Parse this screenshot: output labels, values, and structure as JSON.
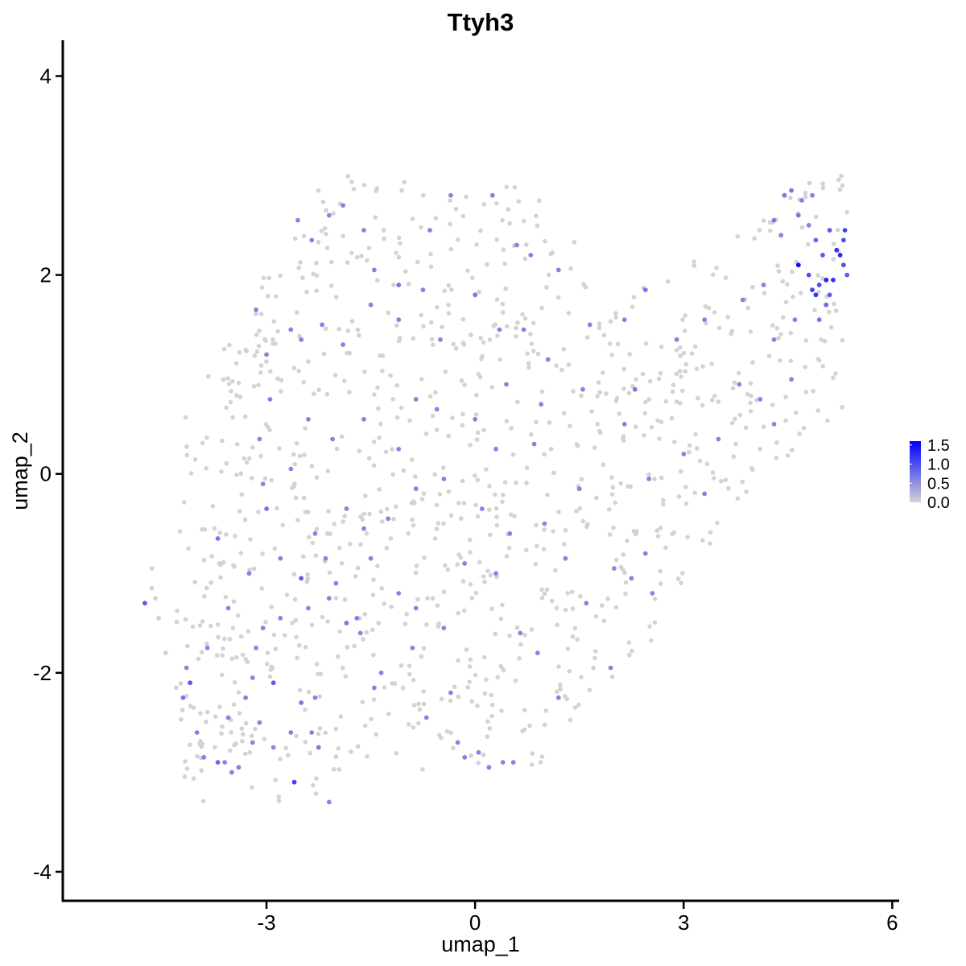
{
  "chart_data": {
    "type": "scatter",
    "title": "Ttyh3",
    "xlabel": "umap_1",
    "ylabel": "umap_2",
    "xlim": [
      -5.93,
      6.1
    ],
    "ylim": [
      -4.3,
      4.36
    ],
    "x_ticks": [
      -3,
      0,
      3,
      6
    ],
    "y_ticks": [
      -4,
      -2,
      0,
      2,
      4
    ],
    "x_tick_labels": [
      "-3",
      "0",
      "3",
      "6"
    ],
    "y_tick_labels": [
      "-4",
      "-2",
      "0",
      "2",
      "4"
    ],
    "grid": false,
    "legend": {
      "placement": "right",
      "type": "colorbar",
      "labels": [
        "1.5",
        "1.0",
        "0.5",
        "0.0"
      ],
      "range": [
        0,
        1.6
      ],
      "low_color": "#d3d3d3",
      "high_color": "#0000ff"
    },
    "colors": {
      "low": "#d3d3d3",
      "high": "#0000ff"
    },
    "points": [
      [
        -4.75,
        -1.3,
        0.9
      ],
      [
        -4.65,
        -1.15,
        0
      ],
      [
        -4.6,
        -1.25,
        0
      ],
      [
        -4.55,
        -1.45,
        0
      ],
      [
        -4.45,
        -1.8,
        0
      ],
      [
        -4.3,
        -2.15,
        0
      ],
      [
        -4.2,
        -2.25,
        0.7
      ],
      [
        -4.1,
        -2.1,
        0.9
      ],
      [
        -4.05,
        -2.35,
        0
      ],
      [
        -4.0,
        -2.6,
        0.6
      ],
      [
        -3.95,
        -2.7,
        0
      ],
      [
        -3.9,
        -2.85,
        0.6
      ],
      [
        -3.7,
        -2.9,
        0.8
      ],
      [
        -3.6,
        -2.9,
        0.6
      ],
      [
        -3.5,
        -3.0,
        0.6
      ],
      [
        -3.4,
        -2.95,
        0.6
      ],
      [
        -3.2,
        -2.7,
        0.6
      ],
      [
        -3.1,
        -2.5,
        0.6
      ],
      [
        -2.9,
        -2.75,
        0.6
      ],
      [
        -2.65,
        -2.6,
        0.6
      ],
      [
        -2.6,
        -3.1,
        1.1
      ],
      [
        -2.5,
        -2.3,
        0.7
      ],
      [
        -2.35,
        -2.6,
        0.6
      ],
      [
        -2.25,
        -2.75,
        0.7
      ],
      [
        -2.1,
        -3.3,
        0.6
      ],
      [
        -2.9,
        -2.1,
        0.9
      ],
      [
        -3.2,
        -2.05,
        0.6
      ],
      [
        -3.15,
        -1.75,
        0.6
      ],
      [
        -3.05,
        -1.55,
        0.6
      ],
      [
        -2.8,
        -1.45,
        0.6
      ],
      [
        -2.5,
        -1.05,
        0.9
      ],
      [
        -2.3,
        -2.25,
        0.6
      ],
      [
        -2.1,
        -1.25,
        0.6
      ],
      [
        -1.85,
        -1.5,
        0.7
      ],
      [
        -1.7,
        -1.45,
        0.6
      ],
      [
        -1.5,
        -0.85,
        0.6
      ],
      [
        -1.45,
        -2.15,
        0.6
      ],
      [
        -1.35,
        -2.0,
        0.6
      ],
      [
        -1.1,
        -1.2,
        0.6
      ],
      [
        -0.85,
        -1.35,
        0.6
      ],
      [
        -0.7,
        -2.45,
        0.6
      ],
      [
        -0.35,
        -2.2,
        0.6
      ],
      [
        -0.25,
        -2.7,
        0.6
      ],
      [
        -0.15,
        -2.85,
        0.6
      ],
      [
        0.05,
        -2.8,
        0.6
      ],
      [
        0.2,
        -2.95,
        0.6
      ],
      [
        0.4,
        -2.9,
        0.6
      ],
      [
        0.55,
        -2.9,
        0.6
      ],
      [
        0.9,
        -1.8,
        0.6
      ],
      [
        1.2,
        -2.25,
        0.6
      ],
      [
        1.95,
        -1.95,
        0.6
      ],
      [
        2.25,
        -1.05,
        0.6
      ],
      [
        2.55,
        -1.2,
        0.6
      ],
      [
        -4.65,
        -0.95,
        0
      ],
      [
        -3.7,
        -0.65,
        0.7
      ],
      [
        -3.0,
        -0.35,
        0.7
      ],
      [
        -3.05,
        -0.1,
        0.6
      ],
      [
        -2.65,
        0.05,
        0.6
      ],
      [
        -2.3,
        -0.6,
        0.6
      ],
      [
        -2.15,
        -0.85,
        0.6
      ],
      [
        -1.85,
        -0.35,
        0.6
      ],
      [
        -1.6,
        -0.55,
        0.6
      ],
      [
        -1.25,
        -0.45,
        0.6
      ],
      [
        -0.85,
        -0.15,
        0.6
      ],
      [
        -0.45,
        -0.05,
        0.6
      ],
      [
        -0.15,
        -0.9,
        0.6
      ],
      [
        0.1,
        -0.35,
        0.6
      ],
      [
        0.3,
        0.25,
        0.6
      ],
      [
        0.5,
        -0.6,
        0.6
      ],
      [
        0.85,
        0.3,
        0.6
      ],
      [
        1.0,
        -0.5,
        0.6
      ],
      [
        1.5,
        -0.15,
        0.6
      ],
      [
        2.15,
        0.5,
        0.6
      ],
      [
        2.5,
        -0.05,
        0.6
      ],
      [
        3.0,
        0.2,
        0.6
      ],
      [
        -3.1,
        0.35,
        0.6
      ],
      [
        -2.95,
        0.75,
        0.6
      ],
      [
        -2.4,
        0.55,
        0.6
      ],
      [
        -2.05,
        0.35,
        0.6
      ],
      [
        -1.6,
        0.55,
        0.6
      ],
      [
        -1.1,
        0.25,
        0.6
      ],
      [
        -0.85,
        0.75,
        0.6
      ],
      [
        -0.55,
        0.65,
        0.6
      ],
      [
        0.0,
        0.55,
        0.6
      ],
      [
        0.45,
        0.9,
        0.6
      ],
      [
        0.95,
        0.7,
        0.6
      ],
      [
        1.55,
        0.85,
        0.6
      ],
      [
        2.3,
        0.85,
        0.7
      ],
      [
        -3.15,
        1.65,
        0.6
      ],
      [
        -3.0,
        1.2,
        0.6
      ],
      [
        -2.65,
        1.45,
        0.6
      ],
      [
        -2.5,
        1.35,
        0.6
      ],
      [
        -2.2,
        1.5,
        0.6
      ],
      [
        -1.9,
        1.3,
        0.6
      ],
      [
        -1.5,
        1.7,
        0.6
      ],
      [
        -1.1,
        1.55,
        0.6
      ],
      [
        -0.75,
        1.85,
        0.6
      ],
      [
        -0.5,
        1.35,
        0.6
      ],
      [
        0.0,
        1.8,
        0.7
      ],
      [
        0.35,
        1.45,
        0.6
      ],
      [
        0.7,
        1.45,
        0.6
      ],
      [
        1.05,
        1.15,
        0.6
      ],
      [
        1.65,
        1.5,
        0.6
      ],
      [
        2.15,
        1.55,
        0.6
      ],
      [
        2.45,
        1.85,
        0.7
      ],
      [
        2.9,
        1.35,
        0.6
      ],
      [
        3.3,
        1.55,
        0.6
      ],
      [
        3.85,
        1.75,
        0.6
      ],
      [
        4.15,
        1.9,
        0.6
      ],
      [
        -2.55,
        2.55,
        0.6
      ],
      [
        -2.35,
        2.35,
        0.6
      ],
      [
        -2.1,
        2.6,
        0.6
      ],
      [
        -1.9,
        2.7,
        0.6
      ],
      [
        -1.6,
        2.45,
        0.6
      ],
      [
        -1.45,
        2.05,
        0.6
      ],
      [
        -1.1,
        1.9,
        0.7
      ],
      [
        -0.65,
        2.45,
        0.6
      ],
      [
        -0.35,
        2.8,
        0.6
      ],
      [
        0.25,
        2.8,
        0.6
      ],
      [
        0.6,
        2.3,
        0.6
      ],
      [
        0.8,
        2.2,
        0.6
      ],
      [
        1.2,
        2.05,
        0.6
      ],
      [
        4.3,
        2.55,
        0.7
      ],
      [
        4.4,
        2.4,
        0.6
      ],
      [
        4.45,
        2.8,
        0.7
      ],
      [
        4.55,
        2.85,
        0.7
      ],
      [
        4.65,
        2.6,
        0.7
      ],
      [
        4.7,
        2.75,
        0.6
      ],
      [
        4.8,
        2.5,
        0.6
      ],
      [
        4.85,
        2.8,
        0.6
      ],
      [
        4.9,
        2.35,
        0.8
      ],
      [
        5.0,
        2.2,
        0.9
      ],
      [
        5.1,
        2.45,
        0.9
      ],
      [
        5.2,
        2.25,
        1.2
      ],
      [
        5.25,
        2.2,
        1.3
      ],
      [
        5.3,
        2.35,
        1.0
      ],
      [
        5.32,
        2.45,
        1.1
      ],
      [
        4.65,
        2.1,
        1.5
      ],
      [
        4.8,
        2.0,
        1.0
      ],
      [
        4.85,
        1.85,
        1.1
      ],
      [
        4.9,
        1.8,
        1.2
      ],
      [
        4.95,
        1.9,
        1.0
      ],
      [
        5.05,
        1.95,
        1.3
      ],
      [
        5.1,
        1.8,
        0.9
      ],
      [
        5.15,
        1.95,
        1.2
      ],
      [
        5.3,
        2.1,
        1.0
      ],
      [
        5.35,
        2.0,
        0.9
      ],
      [
        4.95,
        1.55,
        0.7
      ],
      [
        5.05,
        1.7,
        0.8
      ],
      [
        4.6,
        1.55,
        0.6
      ],
      [
        4.3,
        1.35,
        0.6
      ],
      [
        4.55,
        0.95,
        0.6
      ],
      [
        4.3,
        0.5,
        0.6
      ],
      [
        4.1,
        0.75,
        0.6
      ],
      [
        3.8,
        0.9,
        0.6
      ],
      [
        3.5,
        0.35,
        0.6
      ],
      [
        3.3,
        -0.2,
        0.6
      ],
      [
        2.45,
        -0.8,
        0.6
      ],
      [
        2.0,
        -0.95,
        0.6
      ],
      [
        1.6,
        -1.3,
        0.6
      ],
      [
        1.3,
        -0.85,
        0.6
      ],
      [
        0.65,
        -1.6,
        0.6
      ],
      [
        0.3,
        -1.0,
        0.6
      ],
      [
        -0.45,
        -1.55,
        0.6
      ],
      [
        -0.9,
        -1.75,
        0.6
      ],
      [
        -1.65,
        -1.6,
        0.6
      ],
      [
        -2.0,
        -1.1,
        0.6
      ],
      [
        -2.4,
        -1.35,
        0.6
      ],
      [
        -2.8,
        -0.85,
        0.6
      ],
      [
        -3.25,
        -1.0,
        0.6
      ],
      [
        -3.55,
        -1.35,
        0.6
      ],
      [
        -3.85,
        -1.75,
        0.6
      ],
      [
        -4.15,
        -1.95,
        0.6
      ],
      [
        -3.55,
        -2.45,
        0.6
      ],
      [
        -3.3,
        -2.25,
        0.6
      ]
    ]
  }
}
